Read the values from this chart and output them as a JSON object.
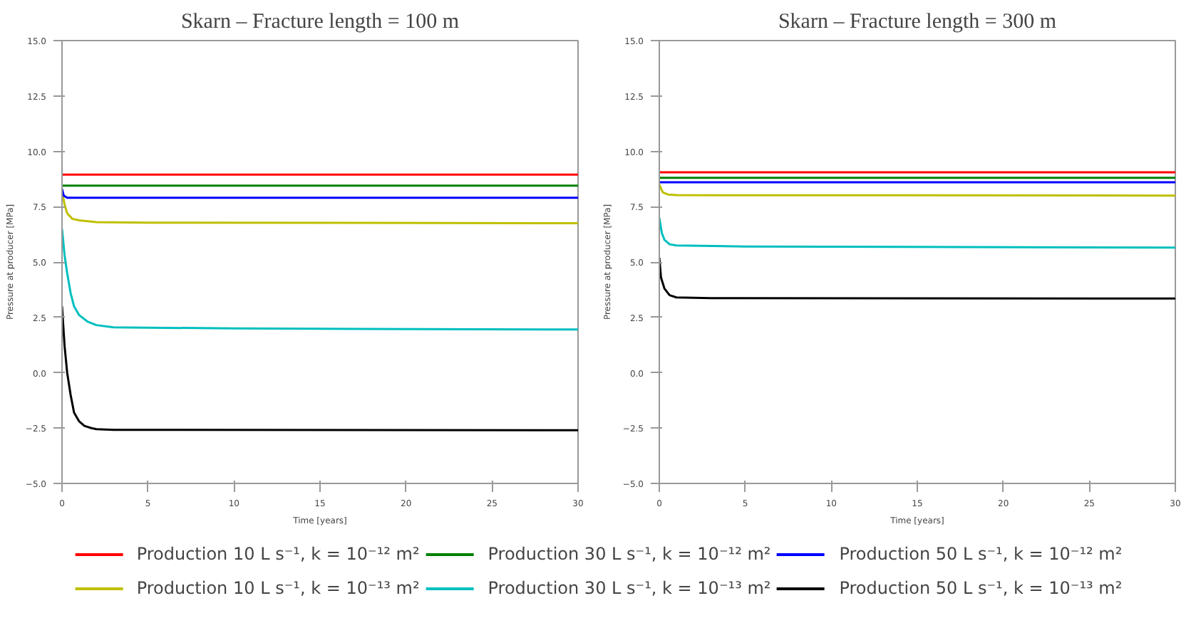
{
  "chart_data": [
    {
      "type": "line",
      "title": "Skarn – Fracture length = 100 m",
      "xlabel": "Time [years]",
      "ylabel": "Pressure at producer [MPa]",
      "xlim": [
        0,
        30
      ],
      "ylim": [
        -5,
        15
      ],
      "xticks": [
        0,
        5,
        10,
        15,
        20,
        25,
        30
      ],
      "yticks": [
        {
          "value": -5,
          "label": "−5.0"
        },
        {
          "value": -2.5,
          "label": "−2.5"
        },
        {
          "value": 0,
          "label": "0.0"
        },
        {
          "value": 2.5,
          "label": "2.5"
        },
        {
          "value": 5,
          "label": "5.0"
        },
        {
          "value": 7.5,
          "label": "7.5"
        },
        {
          "value": 10,
          "label": "10.0"
        },
        {
          "value": 12.5,
          "label": "12.5"
        },
        {
          "value": 15,
          "label": "15.0"
        }
      ],
      "grid": false,
      "legend": "bottom",
      "line_style": "solid",
      "series": [
        {
          "name": "Production 10 L s⁻¹, k = 10⁻¹² m²",
          "color": "#ff0000",
          "x": [
            0,
            30
          ],
          "values": [
            8.95,
            8.95
          ]
        },
        {
          "name": "Production 10 L s⁻¹, k = 10⁻¹³ m²",
          "color": "#bfbf00",
          "x": [
            0,
            0.15,
            0.3,
            0.6,
            1,
            2,
            5,
            30
          ],
          "values": [
            8.2,
            7.6,
            7.2,
            6.95,
            6.88,
            6.8,
            6.78,
            6.75
          ]
        },
        {
          "name": "Production 30 L s⁻¹, k = 10⁻¹² m²",
          "color": "#008000",
          "x": [
            0,
            30
          ],
          "values": [
            8.45,
            8.45
          ]
        },
        {
          "name": "Production 30 L s⁻¹, k = 10⁻¹³ m²",
          "color": "#00bfbf",
          "x": [
            0,
            0.15,
            0.3,
            0.5,
            0.7,
            1,
            1.5,
            2,
            3,
            10,
            30
          ],
          "values": [
            6.5,
            5.3,
            4.5,
            3.6,
            3.0,
            2.6,
            2.3,
            2.15,
            2.05,
            2.0,
            1.95
          ]
        },
        {
          "name": "Production 50 L s⁻¹, k = 10⁻¹² m²",
          "color": "#0000ff",
          "x": [
            0,
            0.1,
            0.3,
            30
          ],
          "values": [
            8.3,
            8.0,
            7.9,
            7.9
          ]
        },
        {
          "name": "Production 50 L s⁻¹, k = 10⁻¹³ m²",
          "color": "#000000",
          "x": [
            0,
            0.15,
            0.3,
            0.5,
            0.7,
            1,
            1.3,
            1.7,
            2,
            3,
            30
          ],
          "values": [
            3.0,
            1.2,
            0.0,
            -1.0,
            -1.8,
            -2.2,
            -2.4,
            -2.5,
            -2.55,
            -2.58,
            -2.6
          ]
        }
      ]
    },
    {
      "type": "line",
      "title": "Skarn – Fracture length = 300 m",
      "xlabel": "Time [years]",
      "ylabel": "Pressure at producer [MPa]",
      "xlim": [
        0,
        30
      ],
      "ylim": [
        -5,
        15
      ],
      "xticks": [
        0,
        5,
        10,
        15,
        20,
        25,
        30
      ],
      "yticks": [
        {
          "value": -5,
          "label": "−5.0"
        },
        {
          "value": -2.5,
          "label": "−2.5"
        },
        {
          "value": 0,
          "label": "0.0"
        },
        {
          "value": 2.5,
          "label": "2.5"
        },
        {
          "value": 5,
          "label": "5.0"
        },
        {
          "value": 7.5,
          "label": "7.5"
        },
        {
          "value": 10,
          "label": "10.0"
        },
        {
          "value": 12.5,
          "label": "12.5"
        },
        {
          "value": 15,
          "label": "15.0"
        }
      ],
      "grid": false,
      "line_style": "solid",
      "series": [
        {
          "color": "#ff0000",
          "x": [
            0,
            30
          ],
          "values": [
            9.05,
            9.05
          ]
        },
        {
          "color": "#bfbf00",
          "x": [
            0,
            0.2,
            0.5,
            1,
            30
          ],
          "values": [
            8.5,
            8.15,
            8.05,
            8.02,
            8.0
          ]
        },
        {
          "color": "#008000",
          "x": [
            0,
            30
          ],
          "values": [
            8.8,
            8.8
          ]
        },
        {
          "color": "#00bfbf",
          "x": [
            0,
            0.15,
            0.3,
            0.6,
            1,
            5,
            30
          ],
          "values": [
            7.0,
            6.3,
            6.0,
            5.8,
            5.75,
            5.7,
            5.65
          ]
        },
        {
          "color": "#0000ff",
          "x": [
            0,
            30
          ],
          "values": [
            8.6,
            8.6
          ]
        },
        {
          "color": "#000000",
          "x": [
            0,
            0.1,
            0.3,
            0.6,
            1,
            3,
            30
          ],
          "values": [
            5.2,
            4.3,
            3.8,
            3.5,
            3.4,
            3.37,
            3.35
          ]
        }
      ]
    }
  ]
}
